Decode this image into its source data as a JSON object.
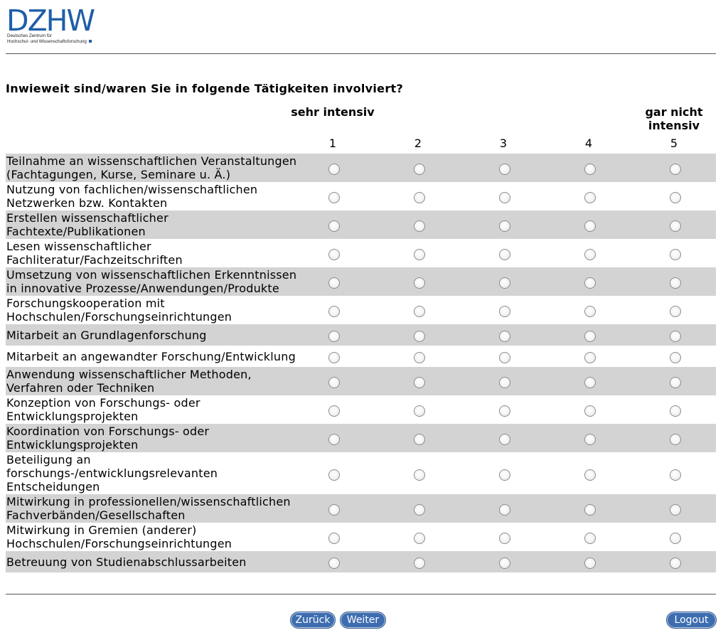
{
  "brand": {
    "wordmark": "DZHW",
    "subtitle_line1": "Deutsches Zentrum für",
    "subtitle_line2": "Hochschul- und Wissenschaftsforschung",
    "color": "#1f5ea8"
  },
  "question": "Inwieweit sind/waren Sie in folgende Tätigkeiten involviert?",
  "scale": {
    "low_label": "sehr intensiv",
    "high_label": "gar nicht intensiv",
    "values": [
      "1",
      "2",
      "3",
      "4",
      "5"
    ]
  },
  "items": [
    {
      "label": "Teilnahme an wissenschaftlichen Veranstaltungen (Fachtagungen, Kurse, Seminare u. Ä.)"
    },
    {
      "label": "Nutzung von fachlichen/wissenschaftlichen Netzwerken bzw. Kontakten"
    },
    {
      "label": "Erstellen wissenschaftlicher Fachtexte/Publikationen"
    },
    {
      "label": "Lesen wissenschaftlicher Fachliteratur/Fachzeitschriften"
    },
    {
      "label": "Umsetzung von wissenschaftlichen Erkenntnissen in innovative Prozesse/Anwendungen/Produkte"
    },
    {
      "label": "Forschungskooperation mit Hochschulen/Forschungseinrichtungen"
    },
    {
      "label": "Mitarbeit an Grundlagenforschung"
    },
    {
      "label": "Mitarbeit an angewandter Forschung/Entwicklung"
    },
    {
      "label": "Anwendung wissenschaftlicher Methoden, Verfahren oder Techniken"
    },
    {
      "label": "Konzeption von Forschungs- oder Entwicklungsprojekten"
    },
    {
      "label": "Koordination von Forschungs- oder Entwicklungsprojekten"
    },
    {
      "label": "Beteiligung an forschungs-/entwicklungsrelevanten Entscheidungen"
    },
    {
      "label": "Mitwirkung in professionellen/wissenschaftlichen Fachverbänden/Gesellschaften"
    },
    {
      "label": "Mitwirkung in Gremien (anderer) Hochschulen/Forschungseinrichtungen"
    },
    {
      "label": "Betreuung von Studienabschlussarbeiten"
    }
  ],
  "buttons": {
    "back": "Zurück",
    "next": "Weiter",
    "logout": "Logout"
  },
  "colors": {
    "row_shade": "#d3d3d3",
    "button_bg": "#3d6db0"
  }
}
